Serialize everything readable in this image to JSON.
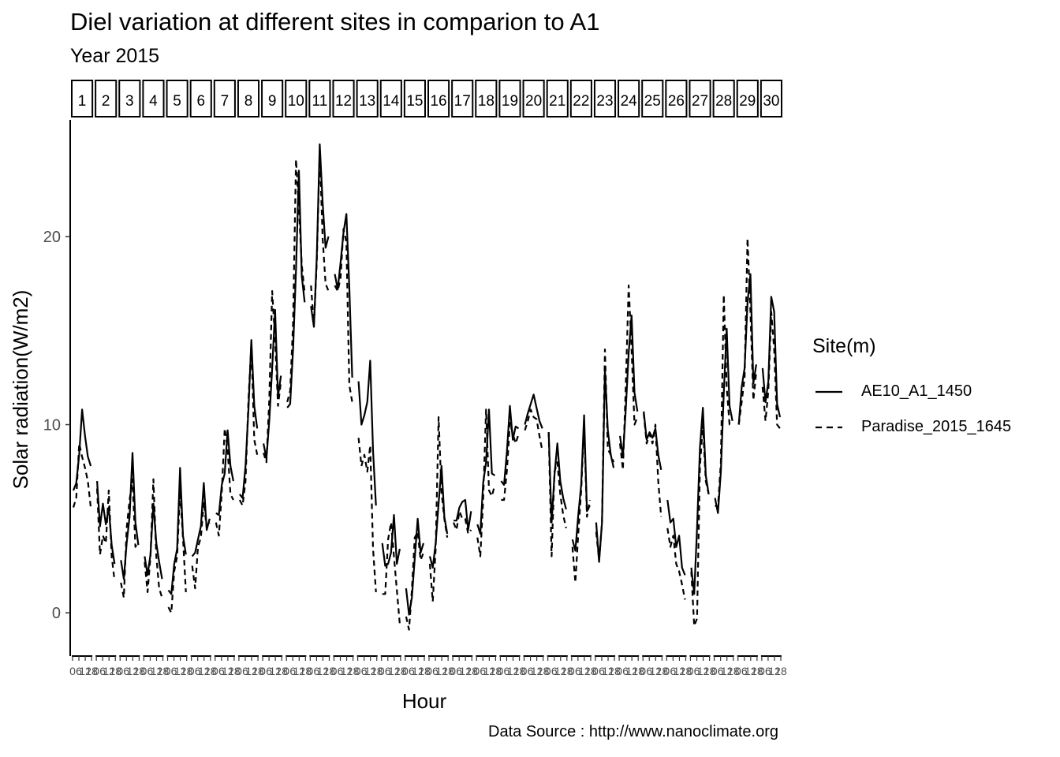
{
  "chart_data": {
    "type": "line",
    "title": "Diel variation at different sites in comparion to A1",
    "subtitle": "Year 2015",
    "caption": "Data Source : http://www.nanoclimate.org",
    "xlabel": "Hour",
    "ylabel": "Solar radiation(W/m2)",
    "ylim": [
      -2.3,
      26.2
    ],
    "y_ticks": [
      0,
      10,
      20
    ],
    "grid": false,
    "legend": {
      "title": "Site(m)",
      "position": "right",
      "entries": [
        {
          "name": "AE10_A1_1450",
          "linetype": "solid"
        },
        {
          "name": "Paradise_2015_1645",
          "linetype": "dashed"
        }
      ]
    },
    "facet_labels": [
      "1",
      "2",
      "3",
      "4",
      "5",
      "6",
      "7",
      "8",
      "9",
      "10",
      "11",
      "12",
      "13",
      "14",
      "15",
      "16",
      "17",
      "18",
      "19",
      "20",
      "21",
      "22",
      "23",
      "24",
      "25",
      "26",
      "27",
      "28",
      "29",
      "30"
    ],
    "x_tick_labels": [
      "0",
      "6",
      "12",
      "18"
    ],
    "series": [
      {
        "name": "AE10_A1_1450",
        "linetype": "solid",
        "panels": [
          [
            6.5,
            6.9,
            8.4,
            10.8,
            9.4,
            8.3,
            7.8
          ],
          [
            7.0,
            4.6,
            5.8,
            4.7,
            5.6,
            3.6,
            2.6
          ],
          [
            2.8,
            1.8,
            3.7,
            5.1,
            8.5,
            4.8,
            3.6
          ],
          [
            3.0,
            2.0,
            3.1,
            5.8,
            3.7,
            2.7,
            1.8
          ],
          [
            1.2,
            1.0,
            2.6,
            3.4,
            7.7,
            4.1,
            3.1
          ],
          [
            3.0,
            3.2,
            3.9,
            4.6,
            6.9,
            4.4,
            5.0
          ],
          [
            5.3,
            5.2,
            6.8,
            7.4,
            9.7,
            7.8,
            7.0
          ],
          [
            6.3,
            6.1,
            7.8,
            10.8,
            14.5,
            11.0,
            9.8
          ],
          [
            9.0,
            8.2,
            10.2,
            13.0,
            16.1,
            11.5,
            12.6
          ],
          [
            10.9,
            11.1,
            14.0,
            18.2,
            23.5,
            17.9,
            16.5
          ],
          [
            16.3,
            15.2,
            19.0,
            24.9,
            21.8,
            19.4,
            20.0
          ],
          [
            18.0,
            17.2,
            18.6,
            20.2,
            21.2,
            17.3,
            12.5
          ],
          [
            12.3,
            10.0,
            10.5,
            11.2,
            13.4,
            8.6,
            5.7
          ],
          [
            3.7,
            2.5,
            2.6,
            3.2,
            5.2,
            2.6,
            3.4
          ],
          [
            1.3,
            -0.1,
            0.8,
            2.9,
            5.0,
            3.2,
            3.7
          ],
          [
            3.0,
            2.4,
            3.7,
            5.8,
            7.8,
            5.1,
            4.2
          ],
          [
            4.9,
            4.9,
            5.6,
            5.9,
            6.0,
            4.4,
            5.4
          ],
          [
            4.7,
            4.2,
            6.9,
            8.0,
            10.8,
            7.4,
            7.3
          ],
          [
            7.0,
            6.8,
            8.6,
            11.0,
            9.2,
            9.9,
            9.8
          ],
          [
            10.0,
            10.6,
            11.1,
            11.6,
            10.9,
            10.2,
            9.8
          ],
          [
            9.6,
            4.8,
            7.3,
            9.0,
            7.0,
            6.1,
            5.5
          ],
          [
            3.9,
            3.3,
            5.2,
            6.8,
            10.5,
            5.4,
            5.7
          ],
          [
            4.8,
            2.7,
            4.8,
            12.9,
            9.7,
            8.4,
            7.7
          ],
          [
            9.4,
            8.3,
            10.8,
            13.8,
            15.8,
            11.7,
            10.7
          ],
          [
            10.7,
            9.2,
            9.6,
            9.3,
            9.8,
            8.4,
            7.6
          ],
          [
            6.0,
            4.8,
            5.0,
            3.5,
            4.1,
            2.4,
            2.0
          ],
          [
            2.4,
            1.0,
            4.5,
            8.8,
            10.9,
            7.3,
            6.3
          ],
          [
            6.1,
            5.3,
            7.5,
            11.7,
            15.1,
            11.0,
            10.2
          ],
          [
            10.0,
            12.0,
            13.0,
            16.5,
            18.0,
            12.2,
            13.2
          ],
          [
            13.0,
            11.2,
            12.3,
            16.8,
            16.0,
            11.1,
            10.4
          ]
        ]
      },
      {
        "name": "Paradise_2015_1645",
        "linetype": "dashed",
        "panels": [
          [
            5.6,
            6.1,
            9.0,
            8.3,
            7.7,
            7.0,
            5.6
          ],
          [
            6.6,
            3.1,
            4.1,
            3.7,
            6.5,
            3.0,
            1.7
          ],
          [
            1.6,
            0.8,
            4.5,
            6.0,
            7.1,
            3.5,
            3.8
          ],
          [
            2.7,
            1.1,
            3.0,
            7.1,
            3.0,
            1.3,
            0.8
          ],
          [
            0.3,
            0.0,
            2.2,
            3.0,
            6.5,
            4.0,
            1.1
          ],
          [
            2.5,
            1.3,
            3.5,
            4.0,
            5.9,
            4.5,
            4.8
          ],
          [
            4.8,
            4.1,
            6.4,
            9.8,
            8.7,
            6.3,
            6.0
          ],
          [
            6.0,
            5.7,
            7.0,
            11.3,
            14.3,
            9.2,
            8.4
          ],
          [
            8.5,
            8.0,
            11.3,
            17.1,
            14.5,
            11.0,
            12.3
          ],
          [
            11.2,
            11.8,
            15.4,
            24.1,
            21.5,
            18.5,
            17.0
          ],
          [
            17.4,
            15.3,
            18.7,
            24.6,
            19.9,
            17.5,
            17.1
          ],
          [
            17.4,
            17.1,
            17.8,
            20.4,
            19.7,
            12.1,
            11.2
          ],
          [
            9.3,
            7.8,
            8.4,
            7.5,
            8.9,
            3.4,
            1.1
          ],
          [
            1.0,
            1.0,
            3.9,
            4.8,
            3.0,
            1.2,
            -0.6
          ],
          [
            -0.2,
            -0.9,
            1.2,
            4.0,
            4.3,
            2.8,
            3.2
          ],
          [
            2.6,
            0.6,
            3.4,
            10.4,
            6.4,
            5.0,
            4.0
          ],
          [
            4.8,
            4.4,
            5.4,
            5.0,
            5.0,
            4.2,
            4.4
          ],
          [
            4.0,
            3.0,
            6.0,
            10.8,
            6.5,
            6.2,
            6.8
          ],
          [
            6.0,
            6.0,
            7.6,
            10.1,
            9.5,
            9.0,
            9.5
          ],
          [
            9.7,
            10.2,
            10.8,
            10.4,
            10.3,
            9.4,
            8.6
          ],
          [
            9.6,
            3.0,
            7.5,
            8.0,
            6.3,
            5.2,
            4.5
          ],
          [
            3.5,
            1.6,
            4.2,
            6.5,
            10.0,
            5.1,
            6.0
          ],
          [
            4.3,
            2.8,
            4.8,
            14.0,
            8.7,
            8.4,
            8.0
          ],
          [
            9.0,
            7.6,
            12.0,
            17.4,
            14.0,
            10.0,
            10.4
          ],
          [
            10.6,
            9.0,
            9.5,
            9.0,
            10.0,
            7.0,
            5.1
          ],
          [
            4.5,
            3.5,
            4.1,
            2.6,
            2.2,
            1.5,
            0.7
          ],
          [
            2.2,
            -0.7,
            -0.3,
            7.8,
            10.0,
            7.0,
            6.3
          ],
          [
            5.7,
            5.6,
            8.0,
            16.9,
            12.0,
            10.0,
            10.0
          ],
          [
            10.0,
            11.2,
            12.5,
            19.9,
            16.0,
            11.3,
            12.8
          ],
          [
            12.0,
            10.2,
            11.8,
            16.0,
            14.0,
            10.0,
            9.8
          ]
        ]
      }
    ]
  }
}
